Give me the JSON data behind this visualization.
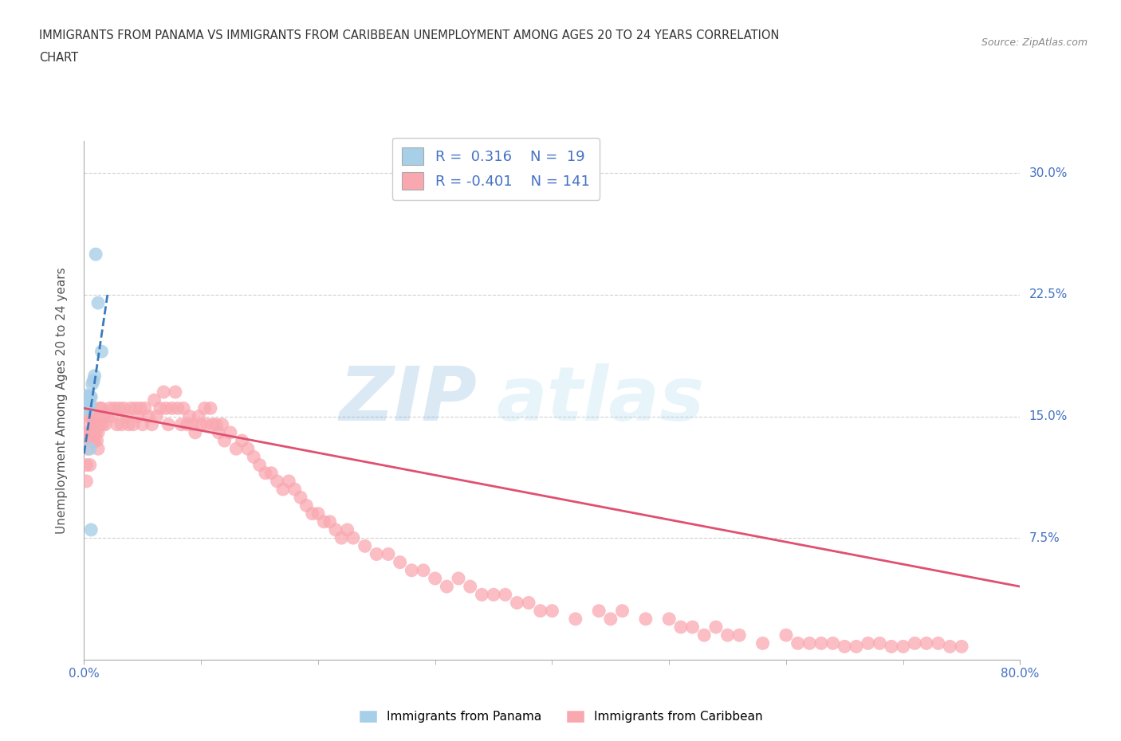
{
  "title_line1": "IMMIGRANTS FROM PANAMA VS IMMIGRANTS FROM CARIBBEAN UNEMPLOYMENT AMONG AGES 20 TO 24 YEARS CORRELATION",
  "title_line2": "CHART",
  "source_text": "Source: ZipAtlas.com",
  "ylabel": "Unemployment Among Ages 20 to 24 years",
  "xlim": [
    0.0,
    0.8
  ],
  "ylim": [
    0.0,
    0.32
  ],
  "yticks_right": [
    0.075,
    0.15,
    0.225,
    0.3
  ],
  "ytick_labels_right": [
    "7.5%",
    "15.0%",
    "22.5%",
    "30.0%"
  ],
  "xtick_minor_vals": [
    0.1,
    0.2,
    0.3,
    0.4,
    0.5,
    0.6,
    0.7
  ],
  "xtick_edge_labels": [
    "0.0%",
    "80.0%"
  ],
  "legend_r_panama": "0.316",
  "legend_n_panama": "19",
  "legend_r_caribbean": "-0.401",
  "legend_n_caribbean": "141",
  "panama_color": "#a8cfe8",
  "caribbean_color": "#f9a8b0",
  "panama_trend_color": "#3a7bbf",
  "caribbean_trend_color": "#e05070",
  "background_color": "#ffffff",
  "grid_color": "#cccccc",
  "watermark_zip": "ZIP",
  "watermark_atlas": "atlas",
  "panama_x": [
    0.002,
    0.002,
    0.002,
    0.003,
    0.003,
    0.003,
    0.004,
    0.004,
    0.005,
    0.005,
    0.005,
    0.006,
    0.006,
    0.007,
    0.008,
    0.009,
    0.01,
    0.012,
    0.015
  ],
  "panama_y": [
    0.163,
    0.158,
    0.155,
    0.162,
    0.158,
    0.155,
    0.16,
    0.155,
    0.162,
    0.158,
    0.13,
    0.162,
    0.08,
    0.17,
    0.172,
    0.175,
    0.25,
    0.22,
    0.19
  ],
  "caribbean_x": [
    0.002,
    0.003,
    0.004,
    0.005,
    0.005,
    0.006,
    0.007,
    0.008,
    0.009,
    0.01,
    0.011,
    0.012,
    0.013,
    0.014,
    0.015,
    0.016,
    0.017,
    0.018,
    0.02,
    0.022,
    0.024,
    0.026,
    0.028,
    0.03,
    0.032,
    0.034,
    0.036,
    0.038,
    0.04,
    0.042,
    0.044,
    0.046,
    0.048,
    0.05,
    0.052,
    0.055,
    0.058,
    0.06,
    0.062,
    0.065,
    0.068,
    0.07,
    0.072,
    0.075,
    0.078,
    0.08,
    0.083,
    0.085,
    0.088,
    0.09,
    0.093,
    0.095,
    0.098,
    0.1,
    0.103,
    0.105,
    0.108,
    0.11,
    0.113,
    0.115,
    0.118,
    0.12,
    0.125,
    0.13,
    0.135,
    0.14,
    0.145,
    0.15,
    0.155,
    0.16,
    0.165,
    0.17,
    0.175,
    0.18,
    0.185,
    0.19,
    0.195,
    0.2,
    0.205,
    0.21,
    0.215,
    0.22,
    0.225,
    0.23,
    0.24,
    0.25,
    0.26,
    0.27,
    0.28,
    0.29,
    0.3,
    0.31,
    0.32,
    0.33,
    0.34,
    0.35,
    0.36,
    0.37,
    0.38,
    0.39,
    0.4,
    0.42,
    0.44,
    0.45,
    0.46,
    0.48,
    0.5,
    0.51,
    0.52,
    0.53,
    0.54,
    0.55,
    0.56,
    0.58,
    0.6,
    0.61,
    0.62,
    0.63,
    0.64,
    0.65,
    0.66,
    0.67,
    0.68,
    0.69,
    0.7,
    0.71,
    0.72,
    0.73,
    0.74,
    0.75,
    0.002,
    0.003,
    0.004,
    0.005,
    0.006,
    0.007,
    0.008,
    0.009,
    0.01,
    0.011,
    0.012
  ],
  "caribbean_y": [
    0.12,
    0.14,
    0.145,
    0.15,
    0.12,
    0.14,
    0.15,
    0.14,
    0.145,
    0.15,
    0.145,
    0.14,
    0.155,
    0.145,
    0.155,
    0.145,
    0.15,
    0.145,
    0.15,
    0.155,
    0.15,
    0.155,
    0.145,
    0.155,
    0.145,
    0.155,
    0.15,
    0.145,
    0.155,
    0.145,
    0.155,
    0.15,
    0.155,
    0.145,
    0.155,
    0.15,
    0.145,
    0.16,
    0.15,
    0.155,
    0.165,
    0.155,
    0.145,
    0.155,
    0.165,
    0.155,
    0.145,
    0.155,
    0.145,
    0.15,
    0.145,
    0.14,
    0.15,
    0.145,
    0.155,
    0.145,
    0.155,
    0.145,
    0.145,
    0.14,
    0.145,
    0.135,
    0.14,
    0.13,
    0.135,
    0.13,
    0.125,
    0.12,
    0.115,
    0.115,
    0.11,
    0.105,
    0.11,
    0.105,
    0.1,
    0.095,
    0.09,
    0.09,
    0.085,
    0.085,
    0.08,
    0.075,
    0.08,
    0.075,
    0.07,
    0.065,
    0.065,
    0.06,
    0.055,
    0.055,
    0.05,
    0.045,
    0.05,
    0.045,
    0.04,
    0.04,
    0.04,
    0.035,
    0.035,
    0.03,
    0.03,
    0.025,
    0.03,
    0.025,
    0.03,
    0.025,
    0.025,
    0.02,
    0.02,
    0.015,
    0.02,
    0.015,
    0.015,
    0.01,
    0.015,
    0.01,
    0.01,
    0.01,
    0.01,
    0.008,
    0.008,
    0.01,
    0.01,
    0.008,
    0.008,
    0.01,
    0.01,
    0.01,
    0.008,
    0.008,
    0.11,
    0.13,
    0.14,
    0.14,
    0.135,
    0.14,
    0.135,
    0.135,
    0.14,
    0.135,
    0.13
  ],
  "panama_trend_x": [
    0.0,
    0.02
  ],
  "panama_trend_y": [
    0.127,
    0.225
  ],
  "caribbean_trend_x": [
    0.0,
    0.8
  ],
  "caribbean_trend_y": [
    0.155,
    0.045
  ]
}
